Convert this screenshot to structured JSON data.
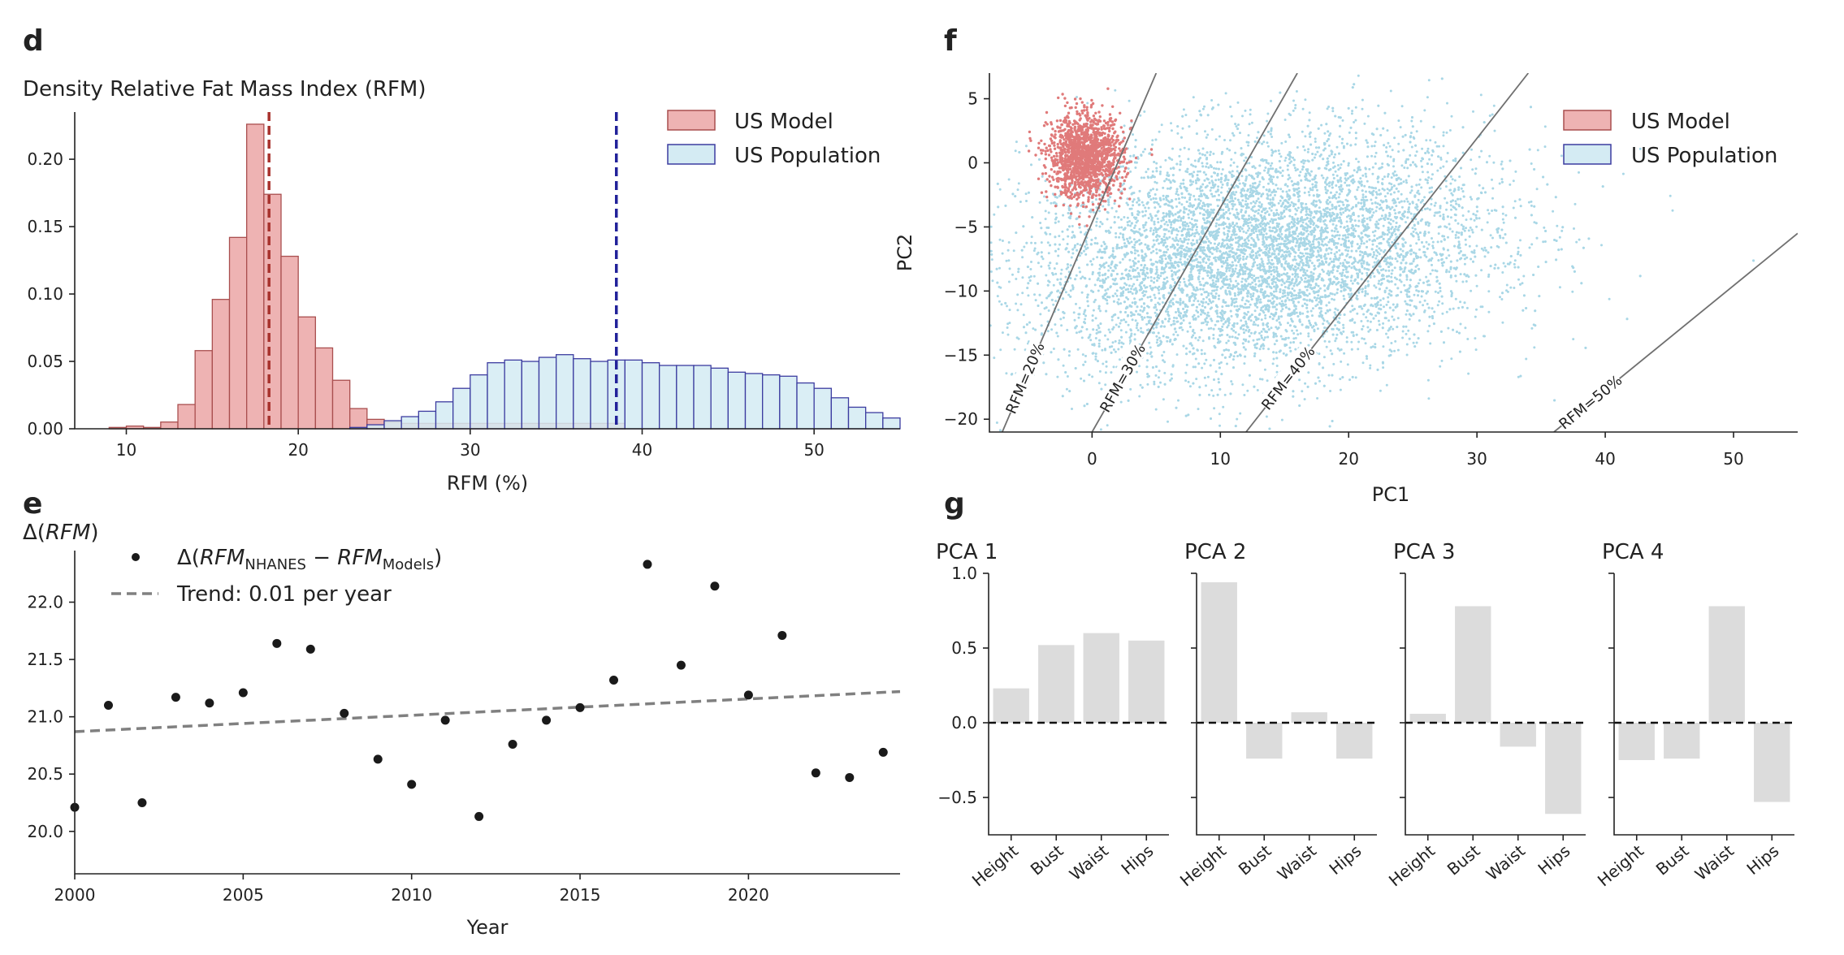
{
  "panels": {
    "d": {
      "tag": "d",
      "title": "Density Relative Fat Mass Index (RFM)",
      "xlabel": "RFM (%)"
    },
    "e": {
      "tag": "e",
      "ylabel": "Δ(RFM)",
      "xlabel": "Year",
      "legend_points": "Δ(RFM_NHANES − RFM_Models)",
      "legend_trend": "Trend: 0.01 per year"
    },
    "f": {
      "tag": "f",
      "xlabel": "PC1",
      "ylabel": "PC2"
    },
    "g": {
      "tag": "g"
    }
  },
  "colors": {
    "model_fill": "#eeb3b3",
    "model_edge": "#a94f4f",
    "model_line": "#a8322d",
    "pop_fill": "#d4ebf3",
    "pop_edge": "#3c3ca0",
    "pop_line": "#22229a",
    "scatter_pop": "#a9d7e6",
    "scatter_model": "#e07a7a",
    "bar_gray": "#dcdcdc",
    "trend": "#808080"
  },
  "chart_data": [
    {
      "id": "d",
      "type": "bar",
      "title": "Density Relative Fat Mass Index (RFM)",
      "xlabel": "RFM (%)",
      "ylabel": "",
      "xlim": [
        7,
        55
      ],
      "ylim": [
        0,
        0.235
      ],
      "xticks": [
        10,
        20,
        30,
        40,
        50
      ],
      "yticks": [
        0.0,
        0.05,
        0.1,
        0.15,
        0.2
      ],
      "legend": {
        "position": "top-right",
        "entries": [
          "US Model",
          "US Population"
        ]
      },
      "series": [
        {
          "name": "US Model",
          "bin_width": 1.0,
          "bin_start": [
            9,
            10,
            11,
            12,
            13,
            14,
            15,
            16,
            17,
            18,
            19,
            20,
            21,
            22,
            23,
            24,
            25,
            26,
            27,
            28,
            29,
            30,
            31,
            32,
            33,
            34,
            35,
            36,
            37,
            38
          ],
          "values": [
            0.001,
            0.002,
            0.001,
            0.005,
            0.018,
            0.058,
            0.096,
            0.142,
            0.226,
            0.174,
            0.128,
            0.083,
            0.06,
            0.036,
            0.015,
            0.007,
            0.005,
            0.004,
            0.004,
            0.004,
            0.004,
            0.004,
            0.004,
            0.004,
            0.004,
            0.004,
            0.004,
            0.004,
            0.004,
            0.004
          ],
          "mean": 18.3
        },
        {
          "name": "US Population",
          "bin_width": 1.0,
          "bin_start": [
            23,
            24,
            25,
            26,
            27,
            28,
            29,
            30,
            31,
            32,
            33,
            34,
            35,
            36,
            37,
            38,
            39,
            40,
            41,
            42,
            43,
            44,
            45,
            46,
            47,
            48,
            49,
            50,
            51,
            52,
            53,
            54
          ],
          "values": [
            0.001,
            0.003,
            0.006,
            0.009,
            0.013,
            0.02,
            0.03,
            0.04,
            0.049,
            0.051,
            0.05,
            0.053,
            0.055,
            0.052,
            0.05,
            0.051,
            0.051,
            0.049,
            0.047,
            0.047,
            0.047,
            0.045,
            0.042,
            0.041,
            0.04,
            0.039,
            0.034,
            0.03,
            0.023,
            0.016,
            0.012,
            0.008
          ],
          "mean": 38.5
        }
      ]
    },
    {
      "id": "e",
      "type": "scatter",
      "xlabel": "Year",
      "ylabel": "Δ(RFM)",
      "xlim": [
        2000,
        2024.5
      ],
      "ylim": [
        19.63,
        22.45
      ],
      "xticks": [
        2000,
        2005,
        2010,
        2015,
        2020
      ],
      "yticks": [
        20.0,
        20.5,
        21.0,
        21.5,
        22.0
      ],
      "legend": {
        "position": "top-left",
        "entries": [
          "Δ(RFM_NHANES − RFM_Models)",
          "Trend: 0.01 per year"
        ]
      },
      "series": [
        {
          "name": "Δ(RFM_NHANES − RFM_Models)",
          "x": [
            2000,
            2001,
            2002,
            2003,
            2004,
            2005,
            2006,
            2007,
            2008,
            2009,
            2010,
            2011,
            2012,
            2013,
            2014,
            2015,
            2016,
            2017,
            2018,
            2019,
            2020,
            2021,
            2022,
            2023,
            2024
          ],
          "y": [
            20.21,
            21.1,
            20.25,
            21.17,
            21.12,
            21.21,
            21.64,
            21.59,
            21.03,
            20.63,
            20.41,
            20.97,
            20.13,
            20.76,
            20.97,
            21.08,
            21.32,
            22.33,
            21.45,
            22.14,
            21.19,
            21.71,
            20.51,
            20.47,
            20.69
          ]
        },
        {
          "name": "Trend: 0.01 per year",
          "type": "line",
          "x": [
            2000,
            2024.5
          ],
          "y": [
            20.87,
            21.22
          ]
        }
      ]
    },
    {
      "id": "f",
      "type": "scatter",
      "xlabel": "PC1",
      "ylabel": "PC2",
      "xlim": [
        -8,
        55
      ],
      "ylim": [
        -21,
        7
      ],
      "xticks": [
        0,
        10,
        20,
        30,
        40,
        50
      ],
      "yticks": [
        5,
        0,
        -5,
        -10,
        -15,
        -20
      ],
      "legend": {
        "position": "top-right",
        "entries": [
          "US Model",
          "US Population"
        ]
      },
      "series": [
        {
          "name": "US Model",
          "points": 1500,
          "cluster_center": [
            -0.5,
            0.5
          ],
          "cluster_spread": [
            1.8,
            2.0
          ]
        },
        {
          "name": "US Population",
          "points": 9000,
          "cluster_center": [
            13,
            -7
          ],
          "cluster_spread": [
            9,
            4.5
          ]
        }
      ],
      "contour_lines": [
        {
          "label": "RFM=20%",
          "x": [
            -7,
            5
          ],
          "y": [
            -21,
            7
          ]
        },
        {
          "label": "RFM=30%",
          "x": [
            0,
            16
          ],
          "y": [
            -21,
            7
          ]
        },
        {
          "label": "RFM=40%",
          "x": [
            12,
            34
          ],
          "y": [
            -21,
            7
          ]
        },
        {
          "label": "RFM=50%",
          "x": [
            36,
            55
          ],
          "y": [
            -21,
            -5.5
          ]
        }
      ]
    },
    {
      "id": "g",
      "type": "bar",
      "ylim": [
        -0.75,
        1.0
      ],
      "yticks": [
        1.0,
        0.5,
        0.0,
        -0.5
      ],
      "categories": [
        "Height",
        "Bust",
        "Waist",
        "Hips"
      ],
      "series": [
        {
          "name": "PCA 1",
          "values": [
            0.23,
            0.52,
            0.6,
            0.55
          ]
        },
        {
          "name": "PCA 2",
          "values": [
            0.94,
            -0.24,
            0.07,
            -0.24
          ]
        },
        {
          "name": "PCA 3",
          "values": [
            0.06,
            0.78,
            -0.16,
            -0.61
          ]
        },
        {
          "name": "PCA 4",
          "values": [
            -0.25,
            -0.24,
            0.78,
            -0.53
          ]
        }
      ]
    }
  ]
}
